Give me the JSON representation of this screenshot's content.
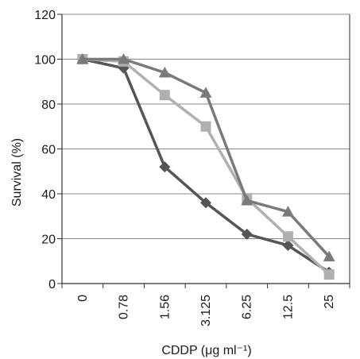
{
  "chart_data": {
    "type": "line",
    "title": "",
    "xlabel": "CDDP (μg ml⁻¹)",
    "ylabel": "Survival (%)",
    "categories": [
      "0",
      "0.78",
      "1.56",
      "3.125",
      "6.25",
      "12.5",
      "25"
    ],
    "ylim": [
      0,
      120
    ],
    "yticks": [
      0,
      20,
      40,
      60,
      80,
      100,
      120
    ],
    "grid": true,
    "legend": "none",
    "series": [
      {
        "marker": "diamond",
        "color": "#555555",
        "values": [
          100,
          96,
          52,
          36,
          22,
          17,
          5
        ]
      },
      {
        "marker": "square",
        "color": "#b0b0b0",
        "values": [
          100,
          99,
          84,
          70,
          38,
          21,
          4
        ]
      },
      {
        "marker": "triangle",
        "color": "#7a7a7a",
        "values": [
          100,
          100,
          94,
          85,
          37,
          32,
          12
        ]
      }
    ]
  }
}
